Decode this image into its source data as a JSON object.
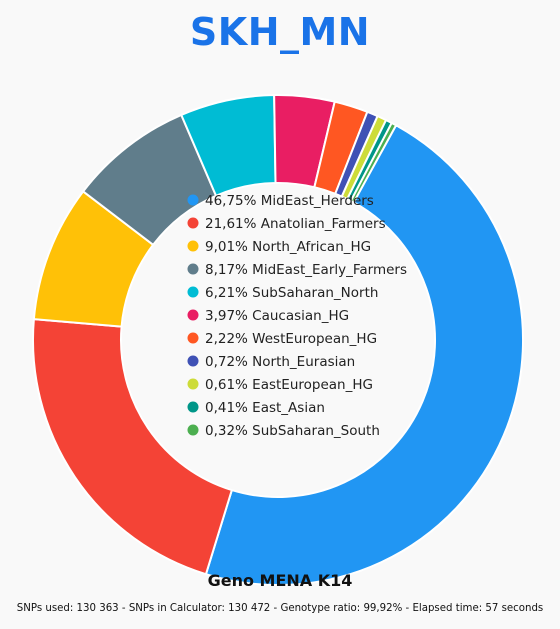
{
  "chart_data": {
    "type": "pie",
    "donut": true,
    "title": "SKH_MN",
    "title_color": "#1a73e8",
    "subtitle": "Geno MENA K14",
    "stats": "SNPs used: 130 363 - SNPs in Calculator: 130 472 - Genotype ratio: 99,92% - Elapsed time: 57 seconds",
    "legend_position": "center",
    "slices": [
      {
        "label": "46,75% MidEast_Herders",
        "name": "MidEast_Herders",
        "value": 46.75,
        "color": "#2196f3"
      },
      {
        "label": "21,61% Anatolian_Farmers",
        "name": "Anatolian_Farmers",
        "value": 21.61,
        "color": "#f44336"
      },
      {
        "label": "9,01% North_African_HG",
        "name": "North_African_HG",
        "value": 9.01,
        "color": "#ffc107"
      },
      {
        "label": "8,17% MidEast_Early_Farmers",
        "name": "MidEast_Early_Farmers",
        "value": 8.17,
        "color": "#607d8b"
      },
      {
        "label": "6,21% SubSaharan_North",
        "name": "SubSaharan_North",
        "value": 6.21,
        "color": "#00bcd4"
      },
      {
        "label": "3,97% Caucasian_HG",
        "name": "Caucasian_HG",
        "value": 3.97,
        "color": "#e91e63"
      },
      {
        "label": "2,22% WestEuropean_HG",
        "name": "WestEuropean_HG",
        "value": 2.22,
        "color": "#ff5722"
      },
      {
        "label": "0,72% North_Eurasian",
        "name": "North_Eurasian",
        "value": 0.72,
        "color": "#3f51b5"
      },
      {
        "label": "0,61% EastEuropean_HG",
        "name": "EastEuropean_HG",
        "value": 0.61,
        "color": "#cddc39"
      },
      {
        "label": "0,41% East_Asian",
        "name": "East_Asian",
        "value": 0.41,
        "color": "#009688"
      },
      {
        "label": "0,32% SubSaharan_South",
        "name": "SubSaharan_South",
        "value": 0.32,
        "color": "#4caf50"
      }
    ]
  }
}
